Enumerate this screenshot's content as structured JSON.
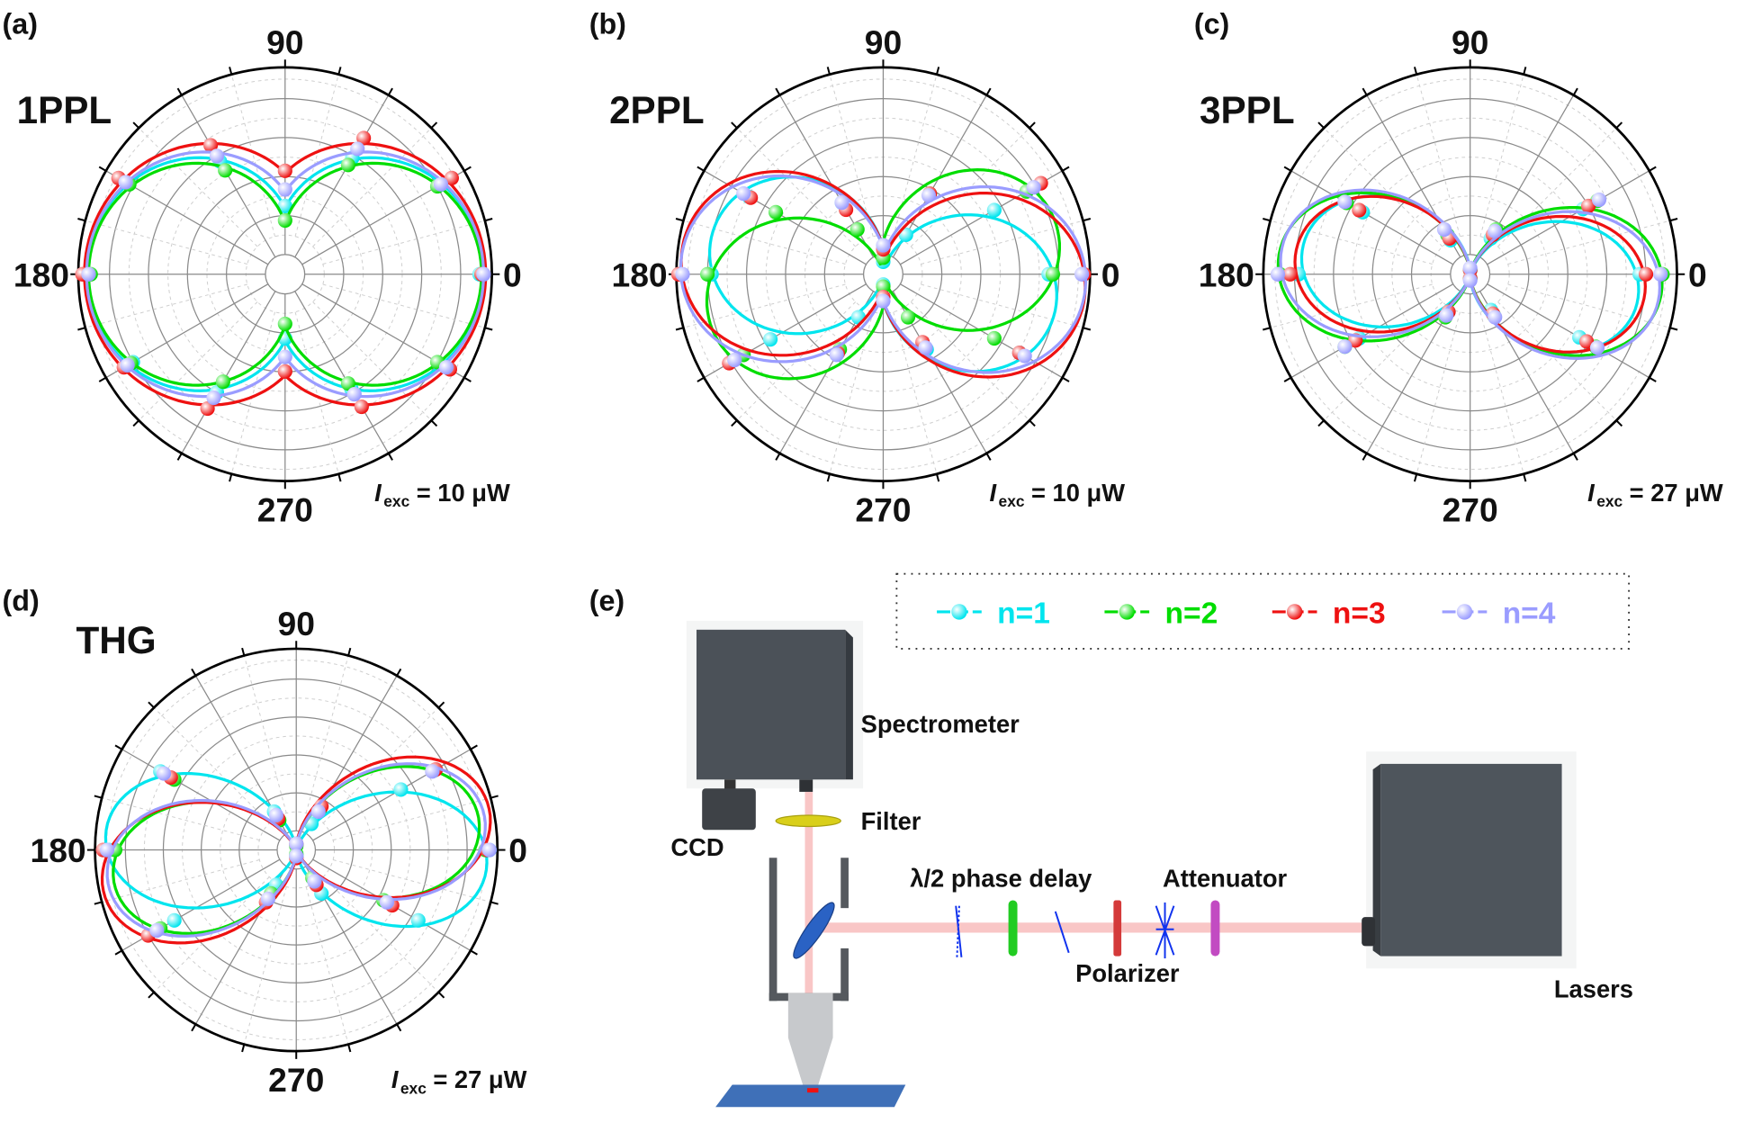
{
  "colors": {
    "n1": "#00e5ee",
    "n2": "#00dd00",
    "n3": "#ee1111",
    "n4": "#9a9cff"
  },
  "legend": [
    {
      "key": "n1",
      "label": "n=1"
    },
    {
      "key": "n2",
      "label": "n=2"
    },
    {
      "key": "n3",
      "label": "n=3"
    },
    {
      "key": "n4",
      "label": "n=4"
    }
  ],
  "chart_data": [
    {
      "type": "polar",
      "panel_label": "(a)",
      "title": "1PPL",
      "angle_labels": [
        "90",
        "180",
        "0",
        "270"
      ],
      "excitation": {
        "symbol": "I",
        "sub": "exc",
        "value": "= 10 μW"
      },
      "radial_axis": {
        "range": [
          0,
          1
        ],
        "tick_labels": "none"
      },
      "grid": true,
      "point_angles_deg": [
        0,
        30,
        60,
        90,
        120,
        150,
        180,
        210,
        240,
        270,
        300,
        330
      ],
      "series": [
        {
          "key": "n1",
          "fit": {
            "offset": 0.32,
            "amplitude": 0.64,
            "exponent": 1,
            "phase_deg": 0
          },
          "points": [
            0.94,
            0.86,
            0.65,
            0.33,
            0.63,
            0.88,
            0.96,
            0.85,
            0.66,
            0.31,
            0.64,
            0.87
          ]
        },
        {
          "key": "n2",
          "fit": {
            "offset": 0.25,
            "amplitude": 0.7,
            "exponent": 1,
            "phase_deg": 0
          },
          "points": [
            0.95,
            0.85,
            0.61,
            0.26,
            0.58,
            0.87,
            0.94,
            0.86,
            0.6,
            0.24,
            0.61,
            0.85
          ]
        },
        {
          "key": "n3",
          "fit": {
            "offset": 0.49,
            "amplitude": 0.48,
            "exponent": 1,
            "phase_deg": 0
          },
          "points": [
            0.95,
            0.93,
            0.76,
            0.5,
            0.72,
            0.93,
            0.98,
            0.9,
            0.75,
            0.47,
            0.74,
            0.92
          ]
        },
        {
          "key": "n4",
          "fit": {
            "offset": 0.4,
            "amplitude": 0.56,
            "exponent": 1,
            "phase_deg": 0
          },
          "points": [
            0.96,
            0.87,
            0.7,
            0.41,
            0.66,
            0.89,
            0.95,
            0.88,
            0.69,
            0.4,
            0.67,
            0.9
          ]
        }
      ]
    },
    {
      "type": "polar",
      "panel_label": "(b)",
      "title": "2PPL",
      "angle_labels": [
        "90",
        "180",
        "0",
        "270"
      ],
      "excitation": {
        "symbol": "I",
        "sub": "exc",
        "value": "= 10 μW"
      },
      "radial_axis": {
        "range": [
          0,
          1
        ],
        "tick_labels": "none"
      },
      "grid": true,
      "point_angles_deg": [
        0,
        30,
        60,
        90,
        120,
        150,
        180,
        210,
        240,
        270,
        300,
        330
      ],
      "series": [
        {
          "key": "n1",
          "fit": {
            "offset": 0.05,
            "amplitude": 0.8,
            "exponent": 1.5,
            "phase_deg": -12
          },
          "points": [
            0.8,
            0.62,
            0.22,
            0.06,
            0.4,
            0.75,
            0.83,
            0.63,
            0.24,
            0.05,
            0.42,
            0.76
          ]
        },
        {
          "key": "n2",
          "fit": {
            "offset": 0.05,
            "amplitude": 0.82,
            "exponent": 1.5,
            "phase_deg": 15
          },
          "points": [
            0.82,
            0.8,
            0.45,
            0.08,
            0.25,
            0.6,
            0.85,
            0.78,
            0.42,
            0.06,
            0.24,
            0.62
          ]
        },
        {
          "key": "n3",
          "fit": {
            "offset": 0.1,
            "amplitude": 0.88,
            "exponent": 1.5,
            "phase_deg": -6
          },
          "points": [
            0.97,
            0.88,
            0.45,
            0.12,
            0.36,
            0.74,
            0.99,
            0.86,
            0.44,
            0.11,
            0.38,
            0.76
          ]
        },
        {
          "key": "n4",
          "fit": {
            "offset": 0.12,
            "amplitude": 0.86,
            "exponent": 1.5,
            "phase_deg": -3
          },
          "points": [
            0.96,
            0.84,
            0.44,
            0.14,
            0.4,
            0.78,
            0.97,
            0.83,
            0.45,
            0.13,
            0.41,
            0.79
          ]
        }
      ]
    },
    {
      "type": "polar",
      "panel_label": "(c)",
      "title": "3PPL",
      "angle_labels": [
        "90",
        "180",
        "0",
        "270"
      ],
      "excitation": {
        "symbol": "I",
        "sub": "exc",
        "value": "= 27 μW"
      },
      "radial_axis": {
        "range": [
          0,
          1
        ],
        "tick_labels": "none"
      },
      "grid": true,
      "point_angles_deg": [
        0,
        30,
        60,
        90,
        120,
        150,
        180,
        210,
        240,
        270,
        300,
        330
      ],
      "series": [
        {
          "key": "n1",
          "fit": {
            "offset": 0.0,
            "amplitude": 0.82,
            "exponent": 2,
            "phase_deg": -8
          },
          "points": [
            0.82,
            0.63,
            0.2,
            0.02,
            0.19,
            0.6,
            0.83,
            0.62,
            0.21,
            0.02,
            0.2,
            0.61
          ]
        },
        {
          "key": "n2",
          "fit": {
            "offset": 0.0,
            "amplitude": 0.93,
            "exponent": 2,
            "phase_deg": -4
          },
          "points": [
            0.93,
            0.71,
            0.25,
            0.02,
            0.22,
            0.69,
            0.92,
            0.7,
            0.24,
            0.02,
            0.23,
            0.7
          ]
        },
        {
          "key": "n3",
          "fit": {
            "offset": 0.0,
            "amplitude": 0.85,
            "exponent": 2,
            "phase_deg": -6
          },
          "points": [
            0.85,
            0.66,
            0.22,
            0.02,
            0.2,
            0.62,
            0.87,
            0.64,
            0.21,
            0.02,
            0.22,
            0.65
          ]
        },
        {
          "key": "n4",
          "fit": {
            "offset": 0.0,
            "amplitude": 0.92,
            "exponent": 2,
            "phase_deg": -6
          },
          "points": [
            0.92,
            0.72,
            0.24,
            0.03,
            0.25,
            0.7,
            0.93,
            0.7,
            0.23,
            0.03,
            0.24,
            0.71
          ]
        }
      ]
    },
    {
      "type": "polar",
      "panel_label": "(d)",
      "title": "THG",
      "angle_labels": [
        "90",
        "180",
        "0",
        "270"
      ],
      "excitation": {
        "symbol": "I",
        "sub": "exc",
        "value": "= 27 μW"
      },
      "radial_axis": {
        "range": [
          0,
          1
        ],
        "tick_labels": "none"
      },
      "grid": true,
      "point_angles_deg": [
        0,
        30,
        60,
        90,
        120,
        150,
        180,
        210,
        240,
        270,
        300,
        330
      ],
      "series": [
        {
          "key": "n1",
          "fit": {
            "offset": 0.0,
            "amplitude": 0.95,
            "exponent": 2.5,
            "phase_deg": -5
          },
          "points": [
            0.96,
            0.6,
            0.15,
            0.03,
            0.22,
            0.78,
            0.93,
            0.7,
            0.2,
            0.03,
            0.25,
            0.7
          ]
        },
        {
          "key": "n2",
          "fit": {
            "offset": 0.0,
            "amplitude": 0.92,
            "exponent": 2.5,
            "phase_deg": 10
          },
          "points": [
            0.94,
            0.79,
            0.24,
            0.02,
            0.17,
            0.7,
            0.9,
            0.78,
            0.25,
            0.02,
            0.16,
            0.5
          ]
        },
        {
          "key": "n3",
          "fit": {
            "offset": 0.0,
            "amplitude": 0.98,
            "exponent": 2.5,
            "phase_deg": 12
          },
          "points": [
            0.95,
            0.8,
            0.25,
            0.03,
            0.18,
            0.72,
            0.96,
            0.85,
            0.3,
            0.04,
            0.2,
            0.55
          ]
        },
        {
          "key": "n4",
          "fit": {
            "offset": 0.0,
            "amplitude": 0.95,
            "exponent": 2.5,
            "phase_deg": 10
          },
          "points": [
            0.96,
            0.78,
            0.22,
            0.03,
            0.2,
            0.76,
            0.94,
            0.8,
            0.28,
            0.03,
            0.18,
            0.52
          ]
        }
      ]
    }
  ],
  "setup": {
    "panel_label": "(e)",
    "labels": {
      "spectrometer": "Spectrometer",
      "filter": "Filter",
      "ccd": "CCD",
      "half_wave": "λ/2 phase delay",
      "attenuator": "Attenuator",
      "polarizer": "Polarizer",
      "lasers": "Lasers"
    }
  }
}
